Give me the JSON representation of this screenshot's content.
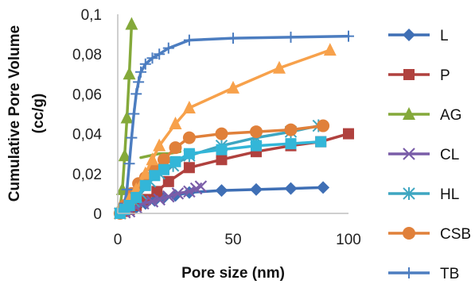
{
  "chart_data": {
    "type": "scatter",
    "title": "",
    "xlabel": "Pore size (nm)",
    "ylabel": "Cumulative Pore Volume",
    "ylabel_unit": "(cc/g)",
    "xlim": [
      0,
      100
    ],
    "ylim": [
      0,
      0.1
    ],
    "x_ticks": [
      0,
      50,
      100
    ],
    "x_tick_labels": [
      "0",
      "50",
      "100"
    ],
    "y_ticks": [
      0,
      0.02,
      0.04,
      0.06,
      0.08,
      0.1
    ],
    "y_tick_labels": [
      "0",
      "0,02",
      "0,04",
      "0,06",
      "0,08",
      "0,1"
    ],
    "grid": false,
    "legend_position": "right",
    "series": [
      {
        "name": "L",
        "color": "#3f6fb5",
        "marker": "diamond",
        "points": [
          [
            1,
            0
          ],
          [
            2,
            0.0005
          ],
          [
            3,
            0.001
          ],
          [
            5,
            0.002
          ],
          [
            8,
            0.003
          ],
          [
            12,
            0.005
          ],
          [
            16,
            0.0065
          ],
          [
            20,
            0.008
          ],
          [
            25,
            0.009
          ],
          [
            31,
            0.0105
          ],
          [
            45,
            0.0115
          ],
          [
            60,
            0.012
          ],
          [
            75,
            0.0125
          ],
          [
            89,
            0.013
          ]
        ]
      },
      {
        "name": "P",
        "color": "#b0413e",
        "marker": "square",
        "points": [
          [
            1,
            0
          ],
          [
            3,
            0.001
          ],
          [
            5,
            0.002
          ],
          [
            8,
            0.004
          ],
          [
            12,
            0.007
          ],
          [
            17,
            0.011
          ],
          [
            22,
            0.016
          ],
          [
            31,
            0.023
          ],
          [
            45,
            0.027
          ],
          [
            60,
            0.031
          ],
          [
            75,
            0.034
          ],
          [
            88,
            0.036
          ],
          [
            100,
            0.04
          ]
        ]
      },
      {
        "name": "AG",
        "color": "#84a93a",
        "marker": "triangle",
        "points": [
          [
            1,
            0.003
          ],
          [
            2,
            0.012
          ],
          [
            3,
            0.029
          ],
          [
            4,
            0.048
          ],
          [
            5,
            0.07
          ],
          [
            6,
            0.095
          ]
        ],
        "extra_segment": [
          [
            10,
            0.028
          ],
          [
            14,
            0.029
          ],
          [
            18,
            0.03
          ],
          [
            22,
            0.03
          ],
          [
            27,
            0.031
          ]
        ]
      },
      {
        "name": "CL",
        "color": "#7a5da8",
        "marker": "x",
        "points": [
          [
            1,
            0
          ],
          [
            3,
            0.0005
          ],
          [
            5,
            0.001
          ],
          [
            8,
            0.003
          ],
          [
            11,
            0.005
          ],
          [
            15,
            0.006
          ],
          [
            18,
            0.007
          ],
          [
            22,
            0.0085
          ],
          [
            26,
            0.01
          ],
          [
            31,
            0.011
          ],
          [
            34,
            0.0125
          ],
          [
            36,
            0.0135
          ]
        ]
      },
      {
        "name": "HL",
        "color": "#3ea6c1",
        "marker": "asterisk",
        "points": [
          [
            1,
            0
          ],
          [
            3,
            0.002
          ],
          [
            5,
            0.004
          ],
          [
            7,
            0.006
          ],
          [
            10,
            0.01
          ],
          [
            14,
            0.016
          ],
          [
            18,
            0.02
          ],
          [
            24,
            0.024
          ],
          [
            31,
            0.029
          ],
          [
            45,
            0.034
          ],
          [
            60,
            0.038
          ],
          [
            75,
            0.041
          ],
          [
            87,
            0.044
          ]
        ]
      },
      {
        "name": "CSB",
        "color": "#e0803a",
        "marker": "circle",
        "points": [
          [
            1,
            0
          ],
          [
            3,
            0.004
          ],
          [
            6,
            0.01
          ],
          [
            9,
            0.015
          ],
          [
            12,
            0.018
          ],
          [
            16,
            0.022
          ],
          [
            20,
            0.027
          ],
          [
            25,
            0.033
          ],
          [
            31,
            0.038
          ],
          [
            45,
            0.04
          ],
          [
            60,
            0.041
          ],
          [
            75,
            0.042
          ],
          [
            89,
            0.044
          ]
        ]
      },
      {
        "name": "TB",
        "color": "#4c7dc0",
        "marker": "plus",
        "points": [
          [
            1,
            0
          ],
          [
            2,
            0.002
          ],
          [
            3,
            0.005
          ],
          [
            4,
            0.012
          ],
          [
            5,
            0.025
          ],
          [
            6,
            0.038
          ],
          [
            7,
            0.05
          ],
          [
            8,
            0.06
          ],
          [
            9,
            0.066
          ],
          [
            10,
            0.071
          ],
          [
            12,
            0.075
          ],
          [
            15,
            0.078
          ],
          [
            18,
            0.08
          ],
          [
            22,
            0.083
          ],
          [
            31,
            0.087
          ],
          [
            50,
            0.088
          ],
          [
            75,
            0.0885
          ],
          [
            100,
            0.089
          ]
        ]
      },
      {
        "name": "",
        "color": "#f7a14b",
        "marker": "triangle",
        "legend": false,
        "points": [
          [
            1,
            0
          ],
          [
            3,
            0.003
          ],
          [
            5,
            0.007
          ],
          [
            8,
            0.012
          ],
          [
            12,
            0.02
          ],
          [
            15,
            0.027
          ],
          [
            18,
            0.034
          ],
          [
            25,
            0.045
          ],
          [
            31,
            0.053
          ],
          [
            50,
            0.063
          ],
          [
            70,
            0.073
          ],
          [
            92,
            0.082
          ]
        ]
      },
      {
        "name": "",
        "color": "#33b6d8",
        "marker": "square",
        "legend": false,
        "points": [
          [
            1,
            0
          ],
          [
            3,
            0.002
          ],
          [
            5,
            0.004
          ],
          [
            8,
            0.008
          ],
          [
            12,
            0.014
          ],
          [
            16,
            0.019
          ],
          [
            20,
            0.022
          ],
          [
            25,
            0.026
          ],
          [
            31,
            0.03
          ],
          [
            45,
            0.032
          ],
          [
            60,
            0.034
          ],
          [
            75,
            0.035
          ],
          [
            88,
            0.036
          ]
        ]
      }
    ]
  }
}
